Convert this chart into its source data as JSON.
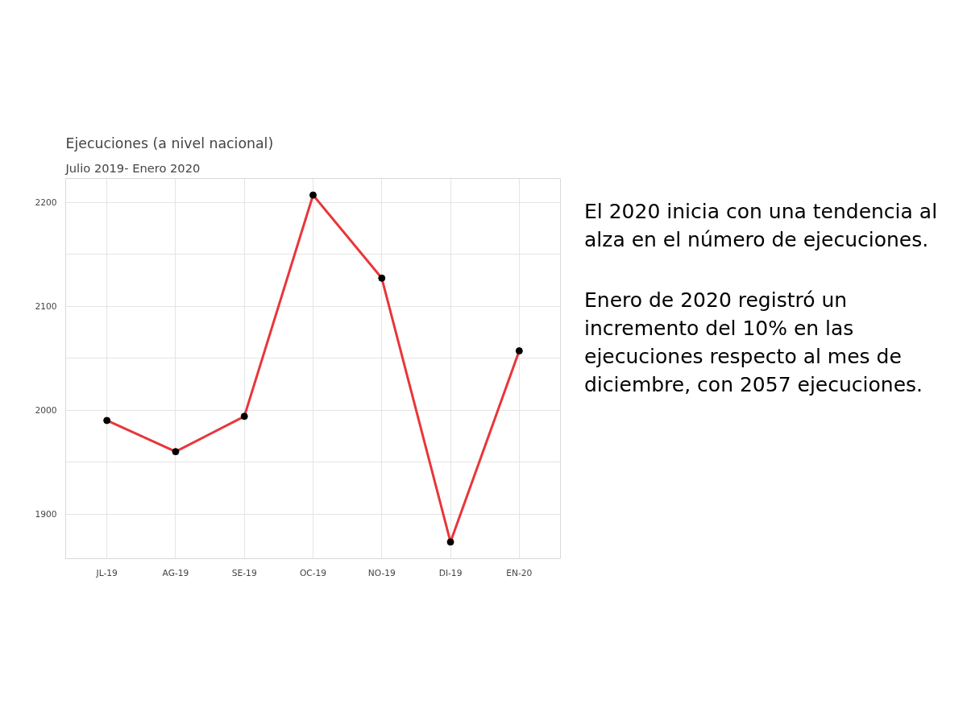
{
  "chart_data": {
    "type": "line",
    "title": "Ejecuciones (a nivel nacional)",
    "subtitle": "Julio 2019- Enero 2020",
    "categories": [
      "JL-19",
      "AG-19",
      "SE-19",
      "OC-19",
      "NO-19",
      "DI-19",
      "EN-20"
    ],
    "series": [
      {
        "color": "#e8363a",
        "values": [
          1990,
          1960,
          1994,
          2207,
          2127,
          1873,
          2057
        ]
      }
    ],
    "ylim": [
      1857,
      2223
    ],
    "yticks": [
      1900,
      {
        "value": 1950,
        "label": null
      },
      2000,
      {
        "value": 2050,
        "label": null
      },
      2100,
      {
        "value": 2150,
        "label": null
      },
      2200
    ],
    "grid": true,
    "marker": "circle",
    "line_style": "solid",
    "annotations": [
      "El 2020 inicia con una tendencia al alza en el número de ejecuciones.",
      "Enero de 2020 registró un incremento del 10% en las ejecuciones respecto al mes de diciembre, con 2057 ejecuciones."
    ]
  }
}
